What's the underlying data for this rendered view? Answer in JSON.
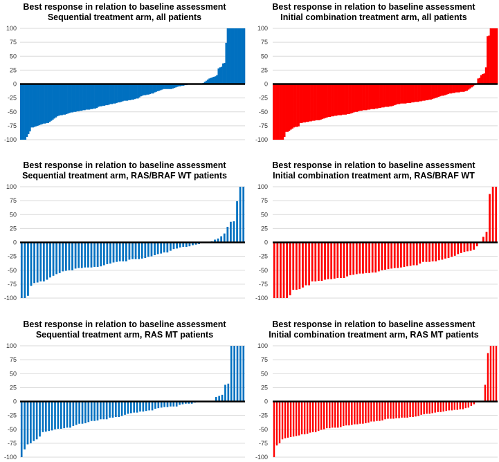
{
  "colors": {
    "sequential": "#0070C0",
    "combination": "#FF0000"
  },
  "chart_data": [
    {
      "type": "bar",
      "title": "Best response in relation to baseline assessment",
      "subtitle": "Sequential treatment arm, all patients",
      "color": "#0070C0",
      "ylim": [
        -100,
        100
      ],
      "yticks": [
        100,
        75,
        50,
        25,
        0,
        -25,
        -50,
        -75,
        -100
      ],
      "grid": true,
      "values": [
        -100,
        -100,
        -100,
        -100,
        -95,
        -90,
        -85,
        -78,
        -78,
        -77,
        -76,
        -75,
        -74,
        -73,
        -72,
        -71,
        -71,
        -70,
        -70,
        -68,
        -66,
        -64,
        -62,
        -60,
        -58,
        -57,
        -56,
        -56,
        -55,
        -55,
        -54,
        -53,
        -52,
        -51,
        -51,
        -50,
        -50,
        -49,
        -49,
        -48,
        -48,
        -47,
        -47,
        -46,
        -46,
        -46,
        -45,
        -45,
        -44,
        -44,
        -43,
        -41,
        -40,
        -40,
        -39,
        -39,
        -38,
        -38,
        -37,
        -36,
        -36,
        -35,
        -35,
        -34,
        -33,
        -33,
        -32,
        -31,
        -30,
        -30,
        -30,
        -29,
        -29,
        -28,
        -28,
        -27,
        -26,
        -26,
        -24,
        -22,
        -21,
        -20,
        -20,
        -19,
        -19,
        -18,
        -17,
        -17,
        -15,
        -14,
        -13,
        -12,
        -11,
        -10,
        -9,
        -9,
        -9,
        -9,
        -9,
        -9,
        -8,
        -7,
        -6,
        -5,
        -4,
        -4,
        -3,
        -3,
        -2,
        -2,
        -1,
        0,
        0,
        0,
        0,
        0,
        0,
        0,
        0,
        1,
        2,
        4,
        6,
        8,
        10,
        11,
        12,
        13,
        14,
        16,
        28,
        30,
        31,
        37,
        38,
        74,
        100,
        100,
        100,
        100,
        100,
        100,
        100,
        100,
        100,
        100,
        100,
        100
      ]
    },
    {
      "type": "bar",
      "title": "Best response in relation to baseline assessment",
      "subtitle": "Initial combination treatment arm, all patients",
      "color": "#FF0000",
      "ylim": [
        -100,
        100
      ],
      "yticks": [
        100,
        75,
        50,
        25,
        0,
        -25,
        -50,
        -75,
        -100
      ],
      "grid": true,
      "values": [
        -100,
        -100,
        -100,
        -100,
        -100,
        -100,
        -100,
        -95,
        -86,
        -86,
        -84,
        -82,
        -80,
        -78,
        -77,
        -77,
        -76,
        -70,
        -70,
        -69,
        -69,
        -68,
        -68,
        -67,
        -67,
        -66,
        -66,
        -65,
        -65,
        -65,
        -64,
        -63,
        -62,
        -61,
        -60,
        -59,
        -59,
        -58,
        -58,
        -57,
        -57,
        -56,
        -56,
        -56,
        -55,
        -55,
        -55,
        -54,
        -54,
        -53,
        -52,
        -51,
        -50,
        -50,
        -49,
        -48,
        -48,
        -47,
        -47,
        -47,
        -46,
        -46,
        -45,
        -45,
        -45,
        -44,
        -44,
        -43,
        -43,
        -42,
        -42,
        -41,
        -41,
        -41,
        -40,
        -40,
        -39,
        -38,
        -37,
        -36,
        -36,
        -35,
        -35,
        -35,
        -35,
        -34,
        -34,
        -34,
        -33,
        -33,
        -32,
        -32,
        -32,
        -31,
        -31,
        -30,
        -30,
        -29,
        -29,
        -28,
        -28,
        -27,
        -26,
        -25,
        -24,
        -23,
        -22,
        -21,
        -21,
        -20,
        -19,
        -18,
        -17,
        -17,
        -16,
        -16,
        -15,
        -15,
        -15,
        -14,
        -14,
        -14,
        -13,
        -12,
        -10,
        -8,
        -6,
        -4,
        -2,
        0,
        10,
        11,
        16,
        18,
        19,
        30,
        86,
        87,
        100,
        100,
        100,
        100,
        100
      ]
    },
    {
      "type": "bar",
      "title": "Best response in relation to baseline assessment",
      "subtitle": "Sequential treatment arm, RAS/BRAF WT patients",
      "color": "#0070C0",
      "ylim": [
        -100,
        100
      ],
      "yticks": [
        100,
        75,
        50,
        25,
        0,
        -25,
        -50,
        -75,
        -100
      ],
      "grid": true,
      "values": [
        -100,
        -100,
        -96,
        -78,
        -73,
        -72,
        -70,
        -70,
        -67,
        -63,
        -60,
        -57,
        -55,
        -52,
        -51,
        -50,
        -50,
        -47,
        -46,
        -46,
        -45,
        -45,
        -45,
        -44,
        -44,
        -43,
        -41,
        -39,
        -38,
        -36,
        -35,
        -34,
        -34,
        -34,
        -31,
        -30,
        -30,
        -30,
        -29,
        -28,
        -26,
        -25,
        -23,
        -21,
        -20,
        -18,
        -18,
        -15,
        -12,
        -11,
        -9,
        -8,
        -8,
        -7,
        -5,
        -4,
        -3,
        0,
        0,
        0,
        2,
        5,
        7,
        11,
        16,
        28,
        37,
        38,
        74,
        100,
        100
      ]
    },
    {
      "type": "bar",
      "title": "Best response in relation to baseline assessment",
      "subtitle": "Initial combination treatment arm, RAS/BRAF WT",
      "color": "#FF0000",
      "ylim": [
        -100,
        100
      ],
      "yticks": [
        100,
        75,
        50,
        25,
        0,
        -25,
        -50,
        -75,
        -100
      ],
      "grid": true,
      "values": [
        -100,
        -100,
        -100,
        -100,
        -100,
        -95,
        -85,
        -85,
        -84,
        -81,
        -77,
        -77,
        -70,
        -70,
        -69,
        -69,
        -67,
        -66,
        -66,
        -65,
        -64,
        -64,
        -64,
        -61,
        -59,
        -58,
        -57,
        -56,
        -56,
        -55,
        -55,
        -54,
        -54,
        -52,
        -50,
        -49,
        -48,
        -47,
        -46,
        -46,
        -45,
        -44,
        -43,
        -42,
        -41,
        -41,
        -38,
        -35,
        -35,
        -35,
        -34,
        -34,
        -32,
        -31,
        -29,
        -28,
        -26,
        -24,
        -21,
        -19,
        -17,
        -16,
        -15,
        -13,
        -7,
        0,
        10,
        19,
        87,
        100,
        100
      ]
    },
    {
      "type": "bar",
      "title": "Best response in relation to baseline assessment",
      "subtitle": "Sequential treatment arm, RAS MT patients",
      "color": "#0070C0",
      "ylim": [
        -100,
        100
      ],
      "yticks": [
        100,
        75,
        50,
        25,
        0,
        -25,
        -50,
        -75,
        -100
      ],
      "grid": true,
      "values": [
        -100,
        -86,
        -77,
        -75,
        -71,
        -68,
        -63,
        -55,
        -54,
        -53,
        -52,
        -50,
        -49,
        -49,
        -48,
        -47,
        -47,
        -44,
        -42,
        -40,
        -40,
        -39,
        -37,
        -35,
        -35,
        -34,
        -32,
        -32,
        -32,
        -29,
        -29,
        -28,
        -28,
        -26,
        -24,
        -22,
        -21,
        -20,
        -20,
        -18,
        -18,
        -17,
        -16,
        -16,
        -13,
        -12,
        -11,
        -10,
        -10,
        -9,
        -9,
        -9,
        -6,
        -5,
        -4,
        -4,
        -4,
        -2,
        -1,
        0,
        0,
        0,
        0,
        0,
        8,
        10,
        12,
        30,
        32,
        100,
        100,
        100,
        100,
        100
      ]
    },
    {
      "type": "bar",
      "title": "Best response in relation to baseline assessment",
      "subtitle": "Initial combination treatment arm, RAS MT patients",
      "color": "#FF0000",
      "ylim": [
        -100,
        100
      ],
      "yticks": [
        100,
        75,
        50,
        25,
        0,
        -25,
        -50,
        -75,
        -100
      ],
      "grid": true,
      "values": [
        -100,
        -79,
        -75,
        -68,
        -66,
        -65,
        -64,
        -63,
        -62,
        -61,
        -59,
        -59,
        -58,
        -56,
        -55,
        -55,
        -53,
        -51,
        -50,
        -48,
        -48,
        -47,
        -47,
        -47,
        -46,
        -44,
        -43,
        -43,
        -42,
        -41,
        -41,
        -40,
        -40,
        -39,
        -38,
        -36,
        -36,
        -35,
        -35,
        -34,
        -32,
        -31,
        -31,
        -31,
        -30,
        -30,
        -29,
        -29,
        -29,
        -28,
        -28,
        -27,
        -26,
        -24,
        -23,
        -22,
        -22,
        -21,
        -20,
        -19,
        -19,
        -18,
        -17,
        -16,
        -16,
        -15,
        -15,
        -14,
        -14,
        -12,
        -11,
        -8,
        -5,
        0,
        0,
        0,
        30,
        87,
        100,
        100,
        100
      ]
    }
  ]
}
